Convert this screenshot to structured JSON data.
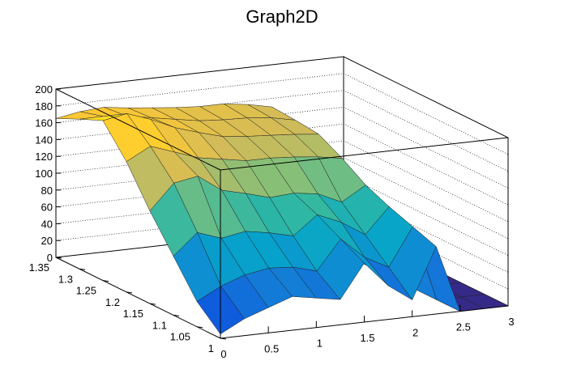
{
  "chart_data": {
    "type": "surface",
    "title": "Graph2D",
    "xlim": [
      0,
      3
    ],
    "ylim": [
      1.0,
      1.35
    ],
    "zlim": [
      0,
      200
    ],
    "x_ticks": [
      "0",
      "0.5",
      "1",
      "1.5",
      "2",
      "2.5",
      "3"
    ],
    "y_ticks": [
      "1",
      "1.05",
      "1.1",
      "1.15",
      "1.2",
      "1.25",
      "1.3",
      "1.35"
    ],
    "z_ticks": [
      "0",
      "20",
      "40",
      "60",
      "80",
      "100",
      "120",
      "140",
      "160",
      "180",
      "200"
    ],
    "x_grid": [
      0,
      0.25,
      0.5,
      0.75,
      1.0,
      1.25,
      1.5,
      1.75,
      2.0,
      2.25,
      2.5,
      2.75,
      3.0
    ],
    "y_grid": [
      1.35,
      1.3,
      1.25,
      1.2,
      1.15,
      1.1,
      1.05,
      1.0
    ],
    "z_values": [
      [
        165,
        170,
        172,
        168,
        165,
        162,
        160,
        160,
        156,
        150,
        0,
        0,
        0
      ],
      [
        178,
        178,
        175,
        170,
        165,
        160,
        158,
        157,
        154,
        148,
        0,
        0,
        0
      ],
      [
        190,
        195,
        185,
        172,
        163,
        155,
        152,
        150,
        148,
        145,
        0,
        0,
        0
      ],
      [
        155,
        170,
        160,
        150,
        145,
        140,
        140,
        138,
        135,
        130,
        0,
        0,
        0
      ],
      [
        110,
        140,
        145,
        125,
        118,
        110,
        112,
        108,
        95,
        112,
        0,
        0,
        0
      ],
      [
        70,
        95,
        85,
        90,
        85,
        78,
        100,
        88,
        70,
        100,
        0,
        0,
        0
      ],
      [
        30,
        45,
        55,
        60,
        58,
        50,
        85,
        60,
        45,
        90,
        0,
        0,
        0
      ],
      [
        5,
        20,
        30,
        40,
        35,
        30,
        70,
        40,
        20,
        80,
        0,
        0,
        0
      ]
    ],
    "colormap": [
      "#352a87",
      "#0f5cdd",
      "#1481d6",
      "#06a4ca",
      "#2eb7a4",
      "#87bf77",
      "#d1bb59",
      "#fec832",
      "#f9fb0e"
    ],
    "grid": true
  }
}
